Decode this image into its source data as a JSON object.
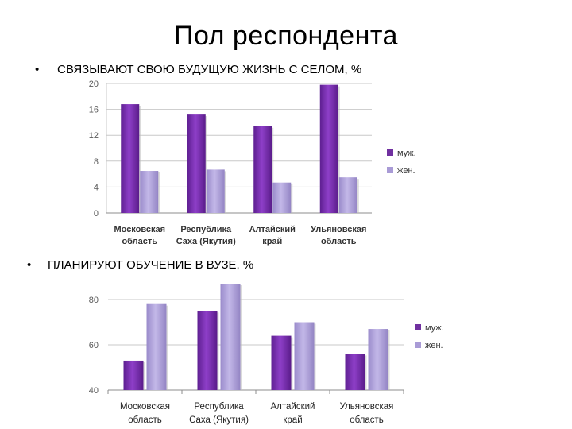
{
  "slide": {
    "title": "Пол респондента",
    "bullet1": "СВЯЗЫВАЮТ СВОЮ БУДУЩУЮ ЖИЗНЬ С СЕЛОМ, %",
    "bullet2": "ПЛАНИРУЮТ ОБУЧЕНИЕ В ВУЗЕ, %",
    "bullet_glyph": "•"
  },
  "colors": {
    "male": "#7030A0",
    "female": "#A99BD6"
  },
  "chart_data": [
    {
      "type": "bar",
      "title": "СВЯЗЫВАЮТ СВОЮ БУДУЩУЮ ЖИЗНЬ С СЕЛОМ, %",
      "categories": [
        [
          "Московская",
          "область"
        ],
        [
          "Республика",
          "Саха (Якутия)"
        ],
        [
          "Алтайский",
          "край"
        ],
        [
          "Ульяновская",
          "область"
        ]
      ],
      "series": [
        {
          "name": "муж.",
          "values": [
            16.8,
            15.2,
            13.4,
            19.8
          ]
        },
        {
          "name": "жен.",
          "values": [
            6.5,
            6.7,
            4.7,
            5.5
          ]
        }
      ],
      "ylim": [
        0,
        20
      ],
      "yticks": [
        "0",
        "4",
        "8",
        "12",
        "16",
        "20"
      ],
      "ytick_values": [
        0,
        4,
        8,
        12,
        16,
        20
      ],
      "grid": true,
      "legend": "right"
    },
    {
      "type": "bar",
      "title": "ПЛАНИРУЮТ ОБУЧЕНИЕ В ВУЗЕ, %",
      "categories": [
        [
          "Московская",
          "область"
        ],
        [
          "Республика",
          "Саха (Якутия)"
        ],
        [
          "Алтайский",
          "край"
        ],
        [
          "Ульяновская",
          "область"
        ]
      ],
      "series": [
        {
          "name": "муж.",
          "values": [
            53,
            75,
            64,
            56
          ]
        },
        {
          "name": "жен.",
          "values": [
            78,
            87,
            70,
            67
          ]
        }
      ],
      "ylim": [
        40,
        80
      ],
      "yticks": [
        "40",
        "60",
        "80"
      ],
      "ytick_values": [
        40,
        60,
        80
      ],
      "grid": true,
      "legend": "right"
    }
  ]
}
